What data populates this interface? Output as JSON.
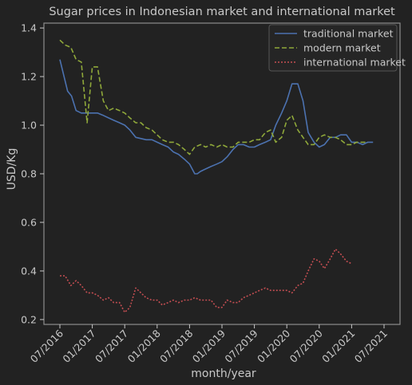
{
  "chart_data": {
    "type": "line",
    "title": "Sugar prices in Indonesian market and international market",
    "xlabel": "month/year",
    "ylabel": "USD/Kg",
    "xlim": [
      2016.5,
      2021.5
    ],
    "ylim": [
      0.18,
      1.42
    ],
    "x_ticks": [
      {
        "x": 2016.5,
        "label": "07/2016"
      },
      {
        "x": 2017.0,
        "label": "01/2017"
      },
      {
        "x": 2017.5,
        "label": "07/2017"
      },
      {
        "x": 2018.0,
        "label": "01/2018"
      },
      {
        "x": 2018.5,
        "label": "07/2018"
      },
      {
        "x": 2019.0,
        "label": "01/2019"
      },
      {
        "x": 2019.5,
        "label": "07/2019"
      },
      {
        "x": 2020.0,
        "label": "01/2020"
      },
      {
        "x": 2020.5,
        "label": "07/2020"
      },
      {
        "x": 2021.0,
        "label": "01/2021"
      },
      {
        "x": 2021.5,
        "label": "07/2021"
      }
    ],
    "y_ticks": [
      {
        "y": 0.2,
        "label": "0.2"
      },
      {
        "y": 0.4,
        "label": "0.4"
      },
      {
        "y": 0.6,
        "label": "0.6"
      },
      {
        "y": 0.8,
        "label": "0.8"
      },
      {
        "y": 1.0,
        "label": "1.0"
      },
      {
        "y": 1.2,
        "label": "1.2"
      },
      {
        "y": 1.4,
        "label": "1.4"
      }
    ],
    "legend_position": "top-right",
    "series": [
      {
        "name": "traditional market",
        "color": "#4c72b0",
        "dash": "solid",
        "points": [
          [
            2016.5,
            1.27
          ],
          [
            2016.62,
            1.14
          ],
          [
            2016.68,
            1.12
          ],
          [
            2016.75,
            1.06
          ],
          [
            2016.83,
            1.05
          ],
          [
            2016.92,
            1.05
          ],
          [
            2017.0,
            1.05
          ],
          [
            2017.08,
            1.05
          ],
          [
            2017.17,
            1.04
          ],
          [
            2017.25,
            1.03
          ],
          [
            2017.33,
            1.02
          ],
          [
            2017.42,
            1.01
          ],
          [
            2017.5,
            1.0
          ],
          [
            2017.58,
            0.98
          ],
          [
            2017.67,
            0.95
          ],
          [
            2017.75,
            0.945
          ],
          [
            2017.83,
            0.94
          ],
          [
            2017.92,
            0.94
          ],
          [
            2018.0,
            0.93
          ],
          [
            2018.08,
            0.92
          ],
          [
            2018.17,
            0.91
          ],
          [
            2018.25,
            0.89
          ],
          [
            2018.33,
            0.88
          ],
          [
            2018.42,
            0.86
          ],
          [
            2018.5,
            0.84
          ],
          [
            2018.58,
            0.8
          ],
          [
            2018.62,
            0.8
          ],
          [
            2018.67,
            0.81
          ],
          [
            2018.75,
            0.82
          ],
          [
            2018.83,
            0.83
          ],
          [
            2018.92,
            0.84
          ],
          [
            2019.0,
            0.85
          ],
          [
            2019.08,
            0.87
          ],
          [
            2019.17,
            0.9
          ],
          [
            2019.25,
            0.92
          ],
          [
            2019.33,
            0.92
          ],
          [
            2019.42,
            0.91
          ],
          [
            2019.5,
            0.91
          ],
          [
            2019.58,
            0.92
          ],
          [
            2019.67,
            0.93
          ],
          [
            2019.75,
            0.94
          ],
          [
            2019.83,
            1.0
          ],
          [
            2019.92,
            1.05
          ],
          [
            2020.0,
            1.1
          ],
          [
            2020.08,
            1.17
          ],
          [
            2020.17,
            1.17
          ],
          [
            2020.25,
            1.1
          ],
          [
            2020.33,
            0.97
          ],
          [
            2020.42,
            0.93
          ],
          [
            2020.5,
            0.91
          ],
          [
            2020.58,
            0.92
          ],
          [
            2020.67,
            0.95
          ],
          [
            2020.75,
            0.95
          ],
          [
            2020.83,
            0.96
          ],
          [
            2020.92,
            0.96
          ],
          [
            2021.0,
            0.93
          ],
          [
            2021.08,
            0.93
          ],
          [
            2021.17,
            0.92
          ],
          [
            2021.25,
            0.93
          ],
          [
            2021.33,
            0.93
          ]
        ]
      },
      {
        "name": "modern market",
        "color": "#8fa83a",
        "dash": "6,3",
        "points": [
          [
            2016.5,
            1.35
          ],
          [
            2016.58,
            1.33
          ],
          [
            2016.67,
            1.32
          ],
          [
            2016.75,
            1.27
          ],
          [
            2016.83,
            1.26
          ],
          [
            2016.92,
            1.01
          ],
          [
            2017.0,
            1.24
          ],
          [
            2017.08,
            1.24
          ],
          [
            2017.17,
            1.1
          ],
          [
            2017.25,
            1.06
          ],
          [
            2017.33,
            1.07
          ],
          [
            2017.42,
            1.06
          ],
          [
            2017.5,
            1.05
          ],
          [
            2017.58,
            1.03
          ],
          [
            2017.67,
            1.01
          ],
          [
            2017.75,
            1.01
          ],
          [
            2017.83,
            0.99
          ],
          [
            2017.92,
            0.98
          ],
          [
            2018.0,
            0.96
          ],
          [
            2018.08,
            0.94
          ],
          [
            2018.17,
            0.93
          ],
          [
            2018.25,
            0.93
          ],
          [
            2018.33,
            0.92
          ],
          [
            2018.42,
            0.9
          ],
          [
            2018.5,
            0.88
          ],
          [
            2018.58,
            0.91
          ],
          [
            2018.67,
            0.92
          ],
          [
            2018.75,
            0.91
          ],
          [
            2018.83,
            0.92
          ],
          [
            2018.92,
            0.91
          ],
          [
            2019.0,
            0.92
          ],
          [
            2019.08,
            0.91
          ],
          [
            2019.17,
            0.91
          ],
          [
            2019.25,
            0.93
          ],
          [
            2019.33,
            0.93
          ],
          [
            2019.42,
            0.93
          ],
          [
            2019.5,
            0.94
          ],
          [
            2019.58,
            0.94
          ],
          [
            2019.67,
            0.97
          ],
          [
            2019.75,
            0.98
          ],
          [
            2019.83,
            0.93
          ],
          [
            2019.92,
            0.95
          ],
          [
            2020.0,
            1.02
          ],
          [
            2020.08,
            1.04
          ],
          [
            2020.17,
            0.98
          ],
          [
            2020.25,
            0.95
          ],
          [
            2020.33,
            0.92
          ],
          [
            2020.42,
            0.92
          ],
          [
            2020.5,
            0.95
          ],
          [
            2020.58,
            0.96
          ],
          [
            2020.67,
            0.95
          ],
          [
            2020.75,
            0.95
          ],
          [
            2020.83,
            0.94
          ],
          [
            2020.92,
            0.92
          ],
          [
            2021.0,
            0.92
          ],
          [
            2021.08,
            0.93
          ],
          [
            2021.17,
            0.93
          ],
          [
            2021.25,
            0.93
          ]
        ]
      },
      {
        "name": "international market",
        "color": "#c44e52",
        "dash": "2,2",
        "points": [
          [
            2016.5,
            0.38
          ],
          [
            2016.58,
            0.38
          ],
          [
            2016.67,
            0.34
          ],
          [
            2016.75,
            0.36
          ],
          [
            2016.83,
            0.34
          ],
          [
            2016.92,
            0.31
          ],
          [
            2017.0,
            0.31
          ],
          [
            2017.08,
            0.3
          ],
          [
            2017.17,
            0.28
          ],
          [
            2017.25,
            0.29
          ],
          [
            2017.33,
            0.27
          ],
          [
            2017.42,
            0.27
          ],
          [
            2017.5,
            0.23
          ],
          [
            2017.58,
            0.25
          ],
          [
            2017.67,
            0.33
          ],
          [
            2017.75,
            0.31
          ],
          [
            2017.83,
            0.29
          ],
          [
            2017.92,
            0.28
          ],
          [
            2018.0,
            0.28
          ],
          [
            2018.08,
            0.26
          ],
          [
            2018.17,
            0.27
          ],
          [
            2018.25,
            0.28
          ],
          [
            2018.33,
            0.27
          ],
          [
            2018.42,
            0.28
          ],
          [
            2018.5,
            0.28
          ],
          [
            2018.58,
            0.29
          ],
          [
            2018.67,
            0.28
          ],
          [
            2018.75,
            0.28
          ],
          [
            2018.83,
            0.28
          ],
          [
            2018.92,
            0.25
          ],
          [
            2019.0,
            0.25
          ],
          [
            2019.08,
            0.28
          ],
          [
            2019.17,
            0.27
          ],
          [
            2019.25,
            0.27
          ],
          [
            2019.33,
            0.29
          ],
          [
            2019.42,
            0.3
          ],
          [
            2019.5,
            0.31
          ],
          [
            2019.58,
            0.32
          ],
          [
            2019.67,
            0.33
          ],
          [
            2019.75,
            0.32
          ],
          [
            2019.83,
            0.32
          ],
          [
            2019.92,
            0.32
          ],
          [
            2020.0,
            0.32
          ],
          [
            2020.08,
            0.31
          ],
          [
            2020.17,
            0.34
          ],
          [
            2020.25,
            0.35
          ],
          [
            2020.33,
            0.4
          ],
          [
            2020.42,
            0.45
          ],
          [
            2020.5,
            0.44
          ],
          [
            2020.58,
            0.41
          ],
          [
            2020.67,
            0.45
          ],
          [
            2020.75,
            0.49
          ],
          [
            2020.83,
            0.47
          ],
          [
            2020.92,
            0.44
          ],
          [
            2021.0,
            0.43
          ]
        ]
      }
    ]
  }
}
